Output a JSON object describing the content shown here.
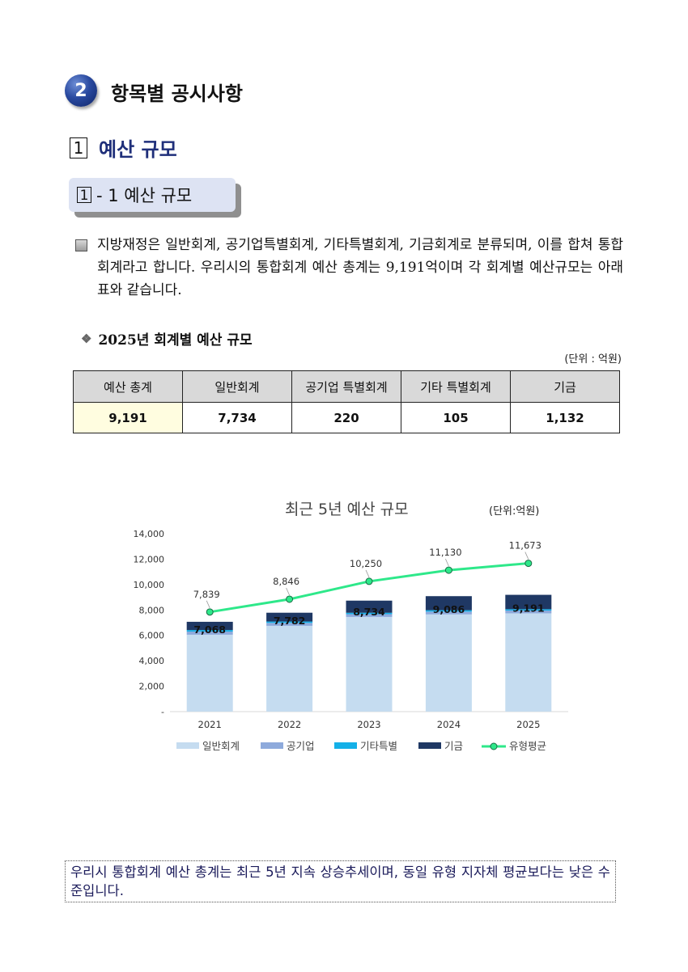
{
  "section": {
    "number": "2",
    "title": "항목별 공시사항"
  },
  "subsection": {
    "number": "1",
    "title": "예산 규모"
  },
  "subsub": {
    "number": "1",
    "suffix": "- 1 예산 규모"
  },
  "paragraph": "지방재정은 일반회계, 공기업특별회계, 기타특별회계, 기금회계로 분류되며, 이를 합쳐 통합회계라고 합니다. 우리시의 통합회계 예산 총계는 9,191억이며 각 회계별 예산규모는 아래표와 같습니다.",
  "table": {
    "title": "2025년 회계별 예산 규모",
    "unit": "(단위 : 억원)",
    "headers": [
      "예산 총계",
      "일반회계",
      "공기업 특별회계",
      "기타 특별회계",
      "기금"
    ],
    "values": [
      "9,191",
      "7,734",
      "220",
      "105",
      "1,132"
    ]
  },
  "chart_title": "최근 5년 예산 규모",
  "chart_unit": "(단위:억원)",
  "chart_data": {
    "type": "bar",
    "categories": [
      "2021",
      "2022",
      "2023",
      "2024",
      "2025"
    ],
    "series": [
      {
        "name": "일반회계",
        "values": [
          6050,
          6750,
          7450,
          7650,
          7734
        ],
        "color": "#c5dcf0"
      },
      {
        "name": "공기업",
        "values": [
          250,
          230,
          220,
          220,
          220
        ],
        "color": "#8eaadc"
      },
      {
        "name": "기타특별",
        "values": [
          120,
          110,
          110,
          110,
          105
        ],
        "color": "#14b0e8"
      },
      {
        "name": "기금",
        "values": [
          648,
          692,
          954,
          1106,
          1132
        ],
        "color": "#1f3864"
      }
    ],
    "totals": [
      "7,068",
      "7,782",
      "8,734",
      "9,086",
      "9,191"
    ],
    "line": {
      "name": "유형평균",
      "values": [
        7839,
        8846,
        10250,
        11130,
        11673
      ],
      "labels": [
        "7,839",
        "8,846",
        "10,250",
        "11,130",
        "11,673"
      ],
      "color": "#2ee88a"
    },
    "yticks": [
      "-",
      "2,000",
      "4,000",
      "6,000",
      "8,000",
      "10,000",
      "12,000",
      "14,000"
    ],
    "ylim": [
      0,
      14000
    ]
  },
  "note": "우리시 통합회계 예산 총계는 최근 5년 지속 상승추세이며, 동일 유형 지자체 평균보다는 낮은 수준입니다."
}
